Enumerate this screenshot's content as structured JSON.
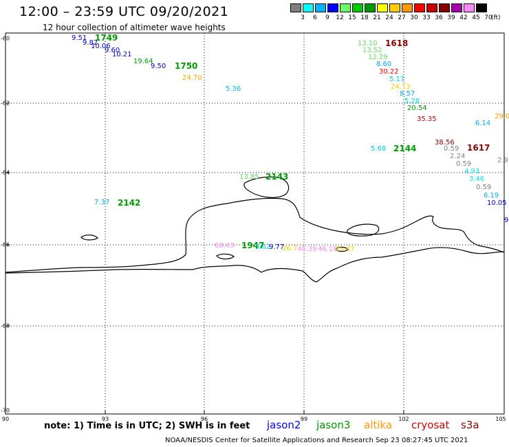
{
  "header": {
    "title": "12:00 – 23:59 UTC 09/20/2021",
    "subtitle": "12 hour collection of altimeter wave heights"
  },
  "colorbar": {
    "unit_label": "(ft)",
    "bins": [
      {
        "label": "3",
        "color": "#7f7f7f"
      },
      {
        "label": "6",
        "color": "#00ffff"
      },
      {
        "label": "9",
        "color": "#00b4ff"
      },
      {
        "label": "12",
        "color": "#0000ff"
      },
      {
        "label": "15",
        "color": "#66ff66"
      },
      {
        "label": "18",
        "color": "#00cc00"
      },
      {
        "label": "21",
        "color": "#009900"
      },
      {
        "label": "24",
        "color": "#ffff00"
      },
      {
        "label": "27",
        "color": "#ffcc00"
      },
      {
        "label": "30",
        "color": "#ff9900"
      },
      {
        "label": "33",
        "color": "#ff0000"
      },
      {
        "label": "36",
        "color": "#cc0000"
      },
      {
        "label": "39",
        "color": "#880000"
      },
      {
        "label": "42",
        "color": "#aa00aa"
      },
      {
        "label": "45",
        "color": "#ff88ff"
      },
      {
        "label": "70",
        "color": "#000000"
      }
    ]
  },
  "axes": {
    "lat_ticks": [
      "-60",
      "-62",
      "-64",
      "-66",
      "-68",
      "-70"
    ],
    "lon_ticks": [
      "90",
      "93",
      "96",
      "99",
      "102",
      "105"
    ]
  },
  "pass_labels": [
    {
      "text": "1749",
      "color": "#009900"
    },
    {
      "text": "1750",
      "color": "#009900"
    },
    {
      "text": "1618",
      "color": "#880000"
    },
    {
      "text": "2144",
      "color": "#009900"
    },
    {
      "text": "1617",
      "color": "#880000"
    },
    {
      "text": "2143",
      "color": "#009900"
    },
    {
      "text": "2142",
      "color": "#009900"
    },
    {
      "text": "1947",
      "color": "#009900"
    }
  ],
  "observations": [
    {
      "text": "9.51",
      "color": "#0000cc"
    },
    {
      "text": "9.82",
      "color": "#0000cc"
    },
    {
      "text": "10.06",
      "color": "#0000cc"
    },
    {
      "text": "9.60",
      "color": "#0000cc"
    },
    {
      "text": "10.21",
      "color": "#0000cc"
    },
    {
      "text": "19.64",
      "color": "#009900"
    },
    {
      "text": "9.50",
      "color": "#0000cc"
    },
    {
      "text": "24.70",
      "color": "#ffaa00"
    },
    {
      "text": "5.36",
      "color": "#00bbdd"
    },
    {
      "text": "13.10",
      "color": "#66dd66"
    },
    {
      "text": "13.52",
      "color": "#66dd66"
    },
    {
      "text": "12.29",
      "color": "#66dd66"
    },
    {
      "text": "8.60",
      "color": "#00aaff"
    },
    {
      "text": "30.22",
      "color": "#ff0000"
    },
    {
      "text": "5.17",
      "color": "#00ccee"
    },
    {
      "text": "24.13",
      "color": "#ffcc00"
    },
    {
      "text": "8.57",
      "color": "#00aaff"
    },
    {
      "text": "5.28",
      "color": "#00ccee"
    },
    {
      "text": "20.54",
      "color": "#009900"
    },
    {
      "text": "35.35",
      "color": "#cc0000"
    },
    {
      "text": "6.14",
      "color": "#00aaff"
    },
    {
      "text": "29.0",
      "color": "#ff9900"
    },
    {
      "text": "5.68",
      "color": "#00ccee"
    },
    {
      "text": "38.56",
      "color": "#880000"
    },
    {
      "text": "0.59",
      "color": "#7f7f7f"
    },
    {
      "text": "2.24",
      "color": "#7f7f7f"
    },
    {
      "text": "0.59",
      "color": "#7f7f7f"
    },
    {
      "text": "2.9",
      "color": "#7f7f7f"
    },
    {
      "text": "4.93",
      "color": "#00ddee"
    },
    {
      "text": "3.46",
      "color": "#00ddee"
    },
    {
      "text": "0.59",
      "color": "#7f7f7f"
    },
    {
      "text": "6.19",
      "color": "#00aaff"
    },
    {
      "text": "10.05",
      "color": "#0000cc"
    },
    {
      "text": "9",
      "color": "#0000cc"
    },
    {
      "text": "13.85",
      "color": "#66dd66"
    },
    {
      "text": "7.37",
      "color": "#00aaff"
    },
    {
      "text": "68.43",
      "color": "#ff88ff"
    },
    {
      "text": "5.62",
      "color": "#00ccee"
    },
    {
      "text": "9.77",
      "color": "#0000cc"
    },
    {
      "text": "26.7",
      "color": "#ffcc00"
    },
    {
      "text": "46.39",
      "color": "#ff88ff"
    },
    {
      "text": "46.19",
      "color": "#ff88ff"
    },
    {
      "text": "25.47",
      "color": "#ffcc00"
    }
  ],
  "footer": {
    "note": "note:  1) Time is in UTC;  2) SWH is in feet",
    "satellites": [
      {
        "name": "jason2",
        "color": "#0000ff"
      },
      {
        "name": "jason3",
        "color": "#009900"
      },
      {
        "name": "altika",
        "color": "#ff9900"
      },
      {
        "name": "cryosat",
        "color": "#cc0000"
      },
      {
        "name": "s3a",
        "color": "#880000"
      }
    ],
    "credit": "NOAA/NESDIS Center for Satellite Applications and Research    Sep 23 08:27:45 UTC 2021"
  }
}
